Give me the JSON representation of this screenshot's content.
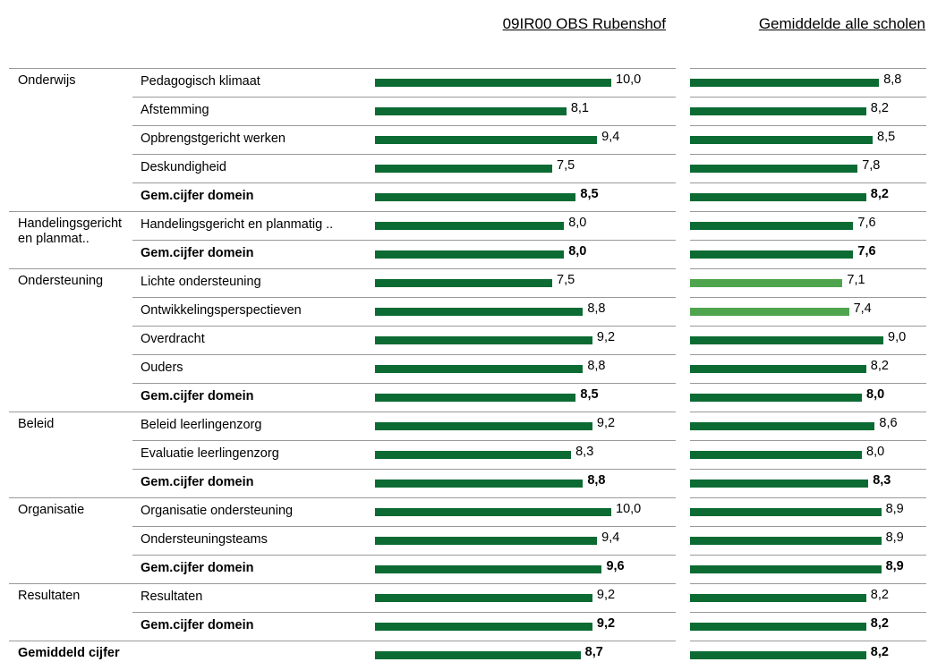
{
  "chart_data": {
    "type": "bar",
    "domains": [
      "Onderwijs",
      null,
      null,
      null,
      null,
      "Handelingsgericht en planmat..",
      null,
      "Ondersteuning",
      null,
      null,
      null,
      null,
      "Beleid",
      null,
      null,
      "Organisatie",
      null,
      null,
      "Resultaten",
      null,
      "Gemiddeld cijfer"
    ],
    "categories": [
      "Pedagogisch klimaat",
      "Afstemming",
      "Opbrengstgericht werken",
      "Deskundigheid",
      "Gem.cijfer domein",
      "Handelingsgericht en planmatig ..",
      "Gem.cijfer domein",
      "Lichte ondersteuning",
      "Ontwikkelingsperspectieven",
      "Overdracht",
      "Ouders",
      "Gem.cijfer domein",
      "Beleid leerlingenzorg",
      "Evaluatie leerlingenzorg",
      "Gem.cijfer domein",
      "Organisatie ondersteuning",
      "Ondersteuningsteams",
      "Gem.cijfer domein",
      "Resultaten",
      "Gem.cijfer domein",
      null
    ],
    "bold": [
      false,
      false,
      false,
      false,
      true,
      false,
      true,
      false,
      false,
      false,
      false,
      true,
      false,
      false,
      true,
      false,
      false,
      true,
      false,
      true,
      true
    ],
    "series": [
      {
        "name": "09IR00 OBS Rubenshof",
        "xlim": [
          0,
          10
        ],
        "values": [
          10.0,
          8.1,
          9.4,
          7.5,
          8.5,
          8.0,
          8.0,
          7.5,
          8.8,
          9.2,
          8.8,
          8.5,
          9.2,
          8.3,
          8.8,
          10.0,
          9.4,
          9.6,
          9.2,
          9.2,
          8.7
        ],
        "value_labels": [
          "10,0",
          "8,1",
          "9,4",
          "7,5",
          "8,5",
          "8,0",
          "8,0",
          "7,5",
          "8,8",
          "9,2",
          "8,8",
          "8,5",
          "9,2",
          "8,3",
          "8,8",
          "10,0",
          "9,4",
          "9,6",
          "9,2",
          "9,2",
          "8,7"
        ],
        "colors": [
          "#0b6b33",
          "#0b6b33",
          "#0b6b33",
          "#0b6b33",
          "#0b6b33",
          "#0b6b33",
          "#0b6b33",
          "#0b6b33",
          "#0b6b33",
          "#0b6b33",
          "#0b6b33",
          "#0b6b33",
          "#0b6b33",
          "#0b6b33",
          "#0b6b33",
          "#0b6b33",
          "#0b6b33",
          "#0b6b33",
          "#0b6b33",
          "#0b6b33",
          "#0b6b33"
        ]
      },
      {
        "name": "Gemiddelde alle scholen",
        "xlim": [
          0,
          11
        ],
        "values": [
          8.8,
          8.2,
          8.5,
          7.8,
          8.2,
          7.6,
          7.6,
          7.1,
          7.4,
          9.0,
          8.2,
          8.0,
          8.6,
          8.0,
          8.3,
          8.9,
          8.9,
          8.9,
          8.2,
          8.2,
          8.2
        ],
        "value_labels": [
          "8,8",
          "8,2",
          "8,5",
          "7,8",
          "8,2",
          "7,6",
          "7,6",
          "7,1",
          "7,4",
          "9,0",
          "8,2",
          "8,0",
          "8,6",
          "8,0",
          "8,3",
          "8,9",
          "8,9",
          "8,9",
          "8,2",
          "8,2",
          "8,2"
        ],
        "colors": [
          "#0b6b33",
          "#0b6b33",
          "#0b6b33",
          "#0b6b33",
          "#0b6b33",
          "#0b6b33",
          "#0b6b33",
          "#4ea54e",
          "#4ea54e",
          "#0b6b33",
          "#0b6b33",
          "#0b6b33",
          "#0b6b33",
          "#0b6b33",
          "#0b6b33",
          "#0b6b33",
          "#0b6b33",
          "#0b6b33",
          "#0b6b33",
          "#0b6b33",
          "#0b6b33"
        ]
      }
    ]
  }
}
